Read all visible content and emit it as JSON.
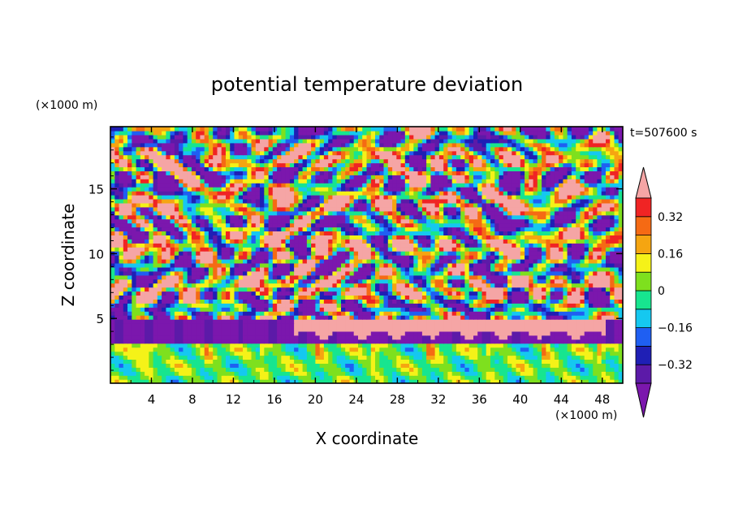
{
  "chart_data": {
    "type": "heatmap",
    "title": "potential temperature deviation",
    "xlabel": "X coordinate",
    "ylabel": "Z coordinate",
    "x_units": "(×1000 m)",
    "z_units": "(×1000 m)",
    "time_label": "t=507600 s",
    "xlim": [
      0,
      50
    ],
    "ylim": [
      0,
      19.8
    ],
    "x_ticks": [
      4,
      8,
      12,
      16,
      20,
      24,
      28,
      32,
      36,
      40,
      44,
      48
    ],
    "y_ticks": [
      5,
      10,
      15
    ],
    "colorbar": {
      "levels": [
        -0.4,
        -0.32,
        -0.24,
        -0.16,
        -0.08,
        0,
        0.08,
        0.16,
        0.24,
        0.32,
        0.4
      ],
      "labeled_levels": [
        "0.32",
        "0.16",
        "0",
        "−0.16",
        "−0.32"
      ],
      "colors": [
        "#7b17ad",
        "#5c1aa8",
        "#1f1fb5",
        "#1f5ff2",
        "#15c8f0",
        "#17e58f",
        "#7ee01e",
        "#f5f218",
        "#f5a511",
        "#f56a14",
        "#f02424",
        "#f5a5a5"
      ]
    },
    "bands": [
      {
        "zmin": 0,
        "zmax": 3.2,
        "description": "near-neutral layer, mostly green and cyan",
        "dominant_value": 0
      },
      {
        "zmin": 3.2,
        "zmax": 4.8,
        "description": "inversion layer: strong negative (purple) on left, strong positive (pink) from x=18 to 48",
        "dominant_value": -0.4
      },
      {
        "zmin": 4.8,
        "zmax": 19.8,
        "description": "turbulent layered structures alternating between positive and negative deviations",
        "dominant_value": 0
      }
    ]
  },
  "colors": {
    "background": "#ffffff",
    "frame": "#000000"
  }
}
